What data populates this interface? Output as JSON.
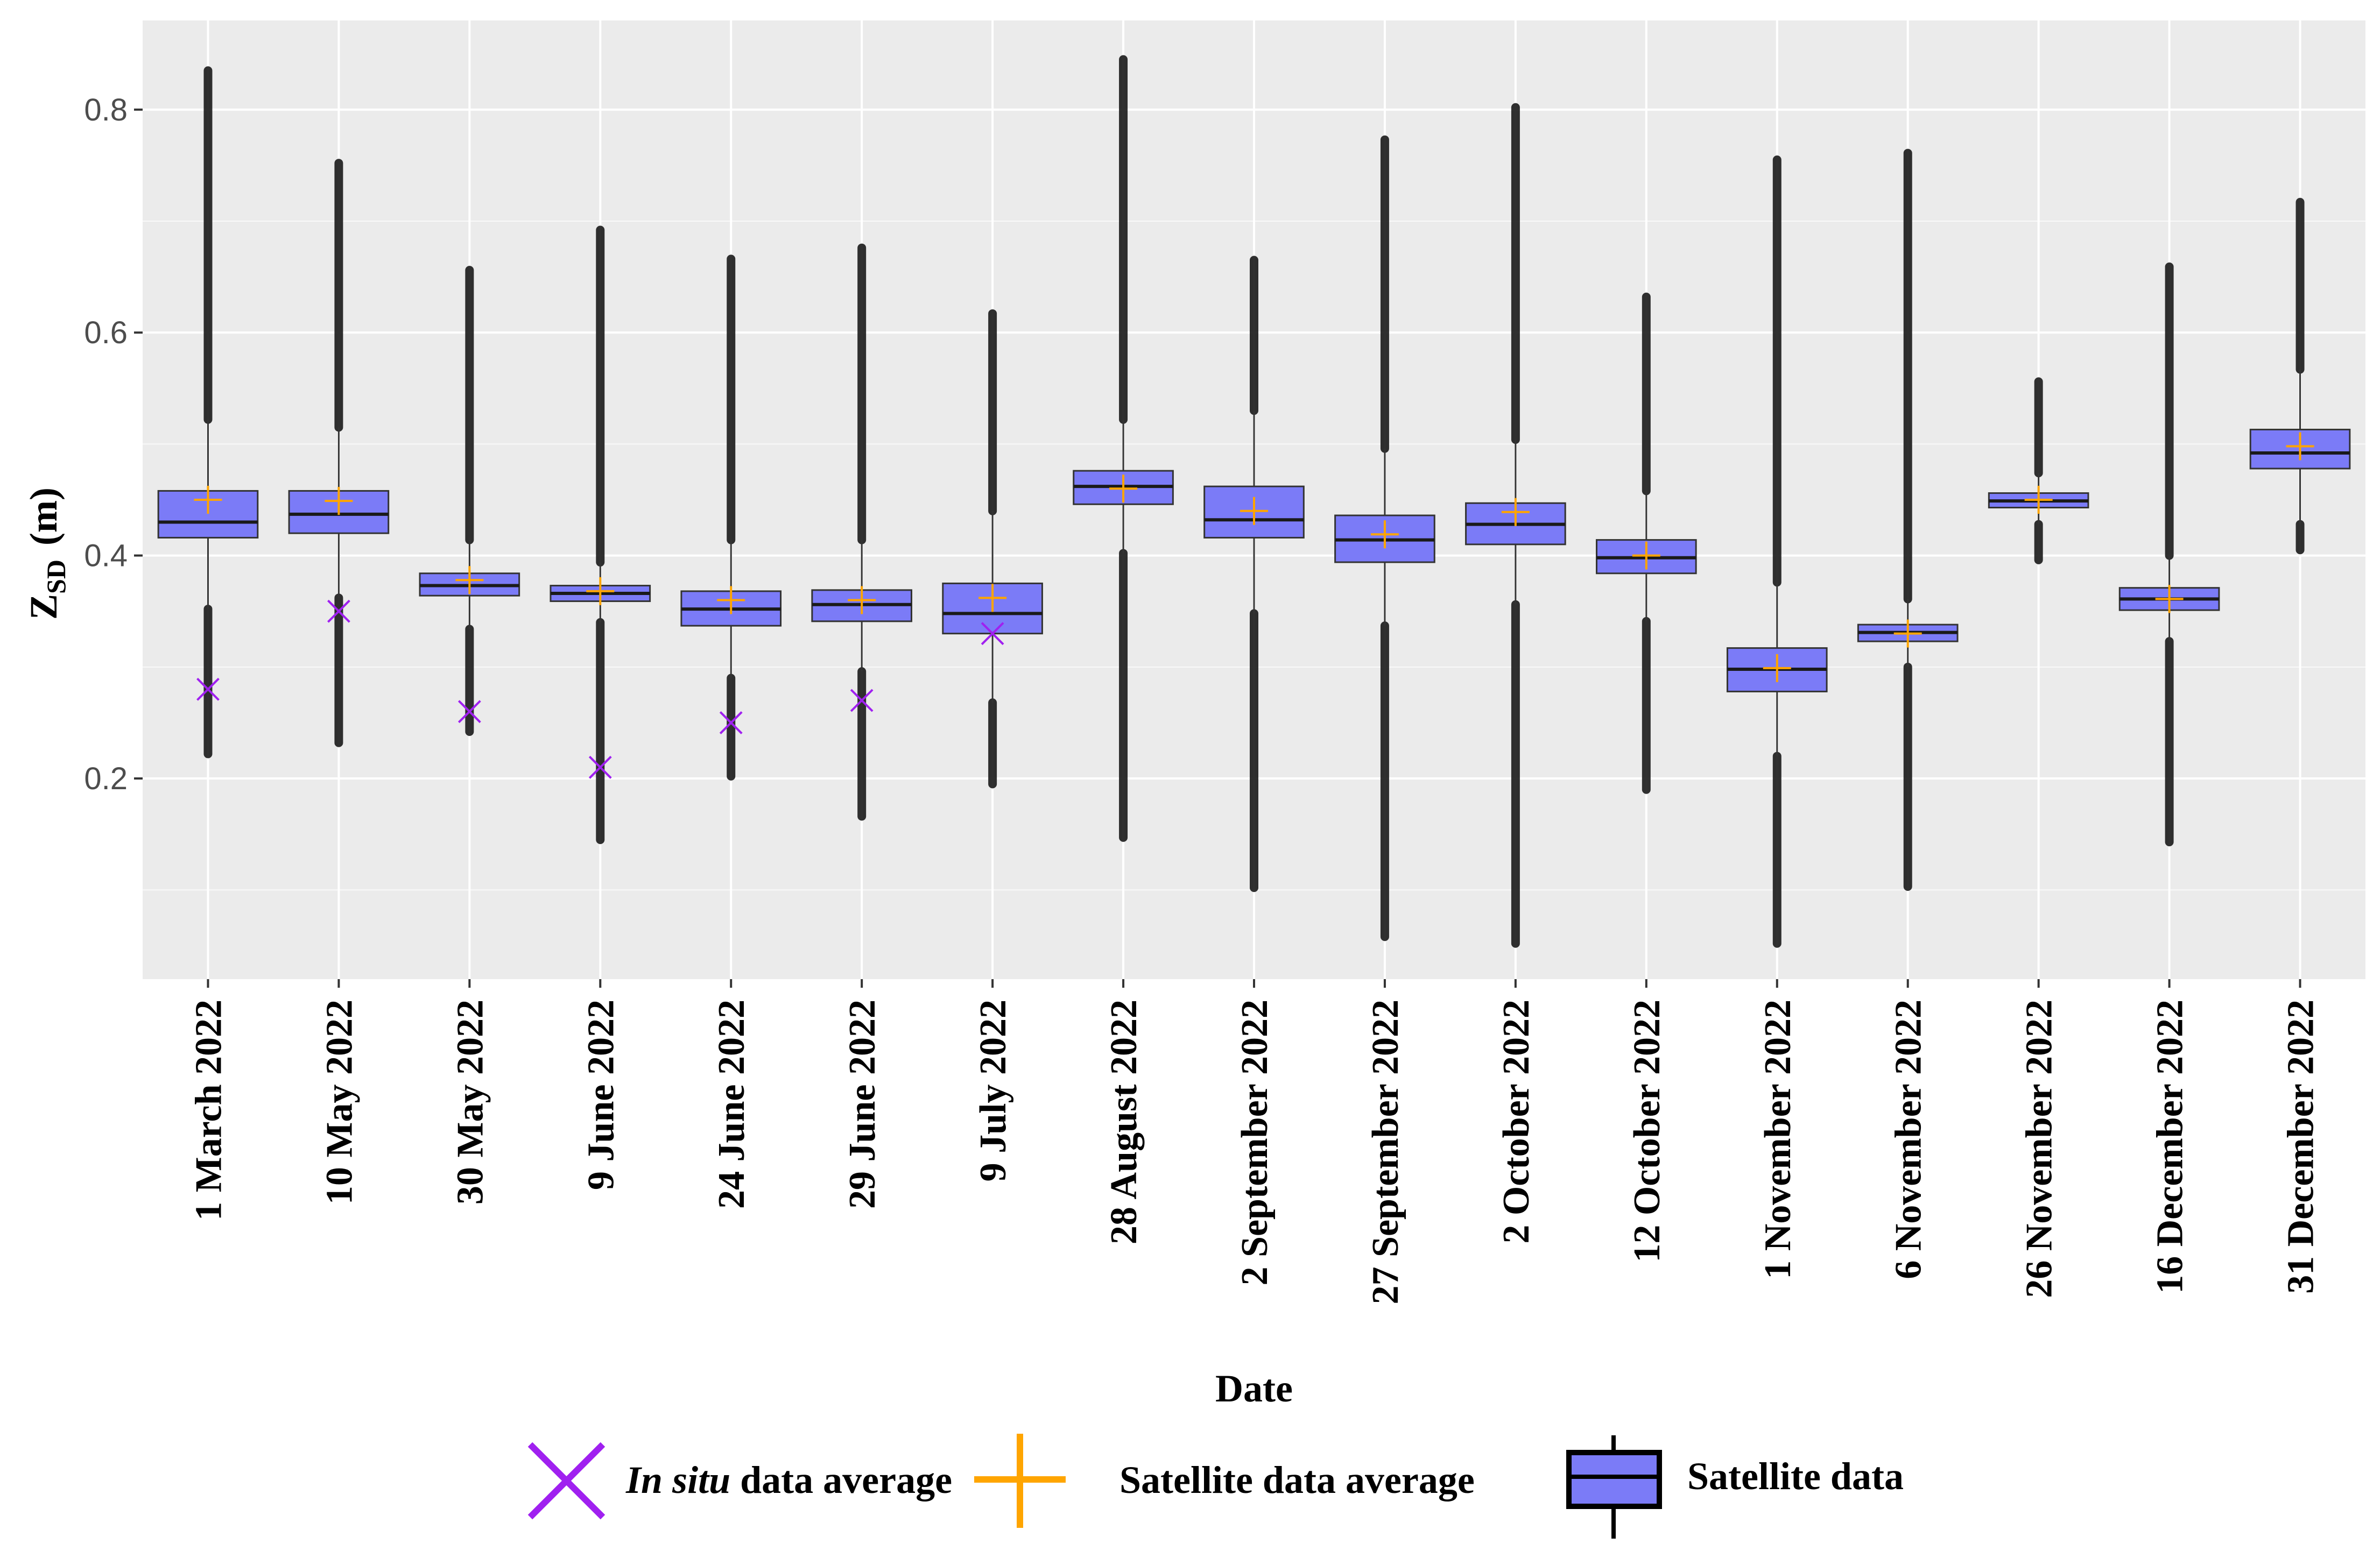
{
  "chart_data": {
    "type": "boxplot",
    "title": "",
    "xlabel": "Date",
    "ylabel_main": "Z",
    "ylabel_sub": "SD",
    "ylabel_unit": "(m)",
    "ylim": [
      0.02,
      0.88
    ],
    "yticks": [
      0.2,
      0.4,
      0.6,
      0.8
    ],
    "ytick_labels": [
      "0.2",
      "0.4",
      "0.6",
      "0.8"
    ],
    "grid": true,
    "colors": {
      "panel": "#ebebeb",
      "grid_major": "#ffffff",
      "box_fill": "#7b7bf7",
      "box_stroke": "#333333",
      "outlier": "#1a1a1a",
      "in_situ": "#a020f0",
      "satellite_avg": "#ffa500"
    },
    "categories": [
      "1 March 2022",
      "10 May 2022",
      "30 May 2022",
      "9 June 2022",
      "24 June 2022",
      "29 June 2022",
      "9 July 2022",
      "28 August 2022",
      "2 September 2022",
      "27 September 2022",
      "2 October 2022",
      "12 October 2022",
      "1 November 2022",
      "6 November 2022",
      "26 November 2022",
      "16 December 2022",
      "31 December 2022"
    ],
    "series": [
      {
        "name": "Satellite data",
        "kind": "box",
        "values": [
          {
            "q1": 0.416,
            "median": 0.43,
            "q3": 0.458,
            "whisker_low": 0.352,
            "whisker_high": 0.522,
            "outlier_low": 0.222,
            "outlier_high": 0.835
          },
          {
            "q1": 0.42,
            "median": 0.437,
            "q3": 0.458,
            "whisker_low": 0.362,
            "whisker_high": 0.515,
            "outlier_low": 0.232,
            "outlier_high": 0.752
          },
          {
            "q1": 0.364,
            "median": 0.373,
            "q3": 0.384,
            "whisker_low": 0.334,
            "whisker_high": 0.414,
            "outlier_low": 0.242,
            "outlier_high": 0.656
          },
          {
            "q1": 0.359,
            "median": 0.366,
            "q3": 0.373,
            "whisker_low": 0.34,
            "whisker_high": 0.394,
            "outlier_low": 0.145,
            "outlier_high": 0.692
          },
          {
            "q1": 0.337,
            "median": 0.352,
            "q3": 0.368,
            "whisker_low": 0.29,
            "whisker_high": 0.414,
            "outlier_low": 0.202,
            "outlier_high": 0.666
          },
          {
            "q1": 0.341,
            "median": 0.356,
            "q3": 0.369,
            "whisker_low": 0.296,
            "whisker_high": 0.414,
            "outlier_low": 0.166,
            "outlier_high": 0.676
          },
          {
            "q1": 0.33,
            "median": 0.348,
            "q3": 0.375,
            "whisker_low": 0.268,
            "whisker_high": 0.44,
            "outlier_low": 0.195,
            "outlier_high": 0.617
          },
          {
            "q1": 0.446,
            "median": 0.462,
            "q3": 0.476,
            "whisker_low": 0.402,
            "whisker_high": 0.522,
            "outlier_low": 0.147,
            "outlier_high": 0.845
          },
          {
            "q1": 0.416,
            "median": 0.432,
            "q3": 0.462,
            "whisker_low": 0.348,
            "whisker_high": 0.53,
            "outlier_low": 0.102,
            "outlier_high": 0.665
          },
          {
            "q1": 0.394,
            "median": 0.414,
            "q3": 0.436,
            "whisker_low": 0.337,
            "whisker_high": 0.496,
            "outlier_low": 0.058,
            "outlier_high": 0.773
          },
          {
            "q1": 0.41,
            "median": 0.428,
            "q3": 0.447,
            "whisker_low": 0.356,
            "whisker_high": 0.504,
            "outlier_low": 0.052,
            "outlier_high": 0.802
          },
          {
            "q1": 0.384,
            "median": 0.398,
            "q3": 0.414,
            "whisker_low": 0.341,
            "whisker_high": 0.458,
            "outlier_low": 0.19,
            "outlier_high": 0.632
          },
          {
            "q1": 0.278,
            "median": 0.298,
            "q3": 0.317,
            "whisker_low": 0.22,
            "whisker_high": 0.376,
            "outlier_low": 0.052,
            "outlier_high": 0.755
          },
          {
            "q1": 0.323,
            "median": 0.331,
            "q3": 0.338,
            "whisker_low": 0.3,
            "whisker_high": 0.361,
            "outlier_low": 0.103,
            "outlier_high": 0.761
          },
          {
            "q1": 0.443,
            "median": 0.449,
            "q3": 0.456,
            "whisker_low": 0.428,
            "whisker_high": 0.474,
            "outlier_low": 0.396,
            "outlier_high": 0.556
          },
          {
            "q1": 0.351,
            "median": 0.361,
            "q3": 0.371,
            "whisker_low": 0.323,
            "whisker_high": 0.4,
            "outlier_low": 0.143,
            "outlier_high": 0.659
          },
          {
            "q1": 0.478,
            "median": 0.492,
            "q3": 0.513,
            "whisker_low": 0.428,
            "whisker_high": 0.567,
            "outlier_low": 0.405,
            "outlier_high": 0.717
          }
        ]
      },
      {
        "name": "Satellite data average",
        "kind": "point",
        "values": [
          0.45,
          0.449,
          0.378,
          0.368,
          0.36,
          0.36,
          0.362,
          0.46,
          0.44,
          0.419,
          0.439,
          0.4,
          0.299,
          0.33,
          0.45,
          0.361,
          0.498
        ]
      },
      {
        "name": "In situ data average",
        "kind": "point",
        "values": [
          0.28,
          0.35,
          0.26,
          0.21,
          0.25,
          0.27,
          0.33,
          null,
          null,
          null,
          null,
          null,
          null,
          null,
          null,
          null,
          null
        ]
      }
    ],
    "legend": {
      "position": "bottom",
      "items": [
        {
          "key": "in_situ",
          "label_italic": "In situ",
          "label_rest": " data average"
        },
        {
          "key": "satellite_avg",
          "label_italic": "",
          "label_rest": "Satellite data average"
        },
        {
          "key": "box",
          "label_italic": "",
          "label_rest": "Satellite data"
        }
      ]
    }
  }
}
